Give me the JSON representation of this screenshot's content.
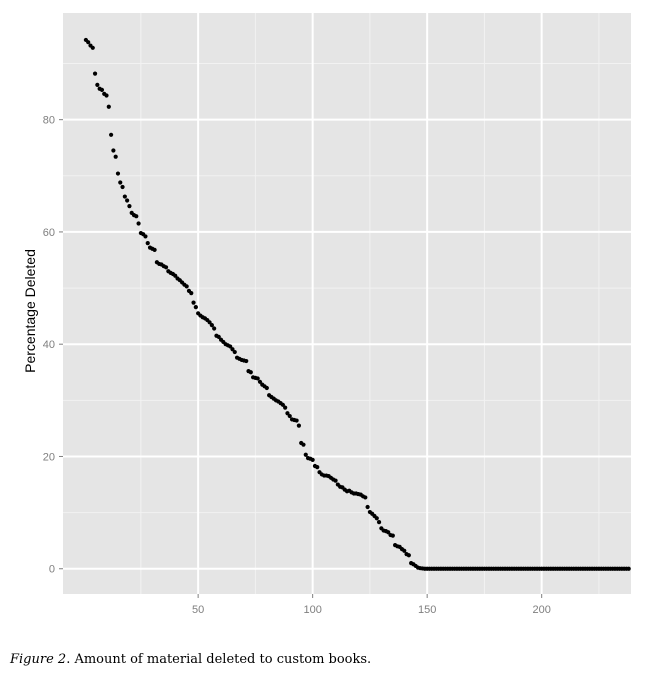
{
  "chart_data": {
    "type": "scatter",
    "title": "",
    "xlabel": "",
    "ylabel": "Percentage Deleted",
    "xlim": [
      -9,
      239
    ],
    "ylim": [
      -4.5,
      99
    ],
    "xticks": [
      50,
      100,
      150,
      200
    ],
    "yticks": [
      0,
      20,
      40,
      60,
      80
    ],
    "grid": true,
    "legend": "none",
    "colors": {
      "panel": "#e5e5e5",
      "grid_major": "#ffffff",
      "grid_minor": "#f2f2f2",
      "point": "#000000",
      "tick_label": "#7f7f7f"
    },
    "points": [
      [
        1,
        94.2
      ],
      [
        2,
        93.8
      ],
      [
        3,
        93.2
      ],
      [
        4,
        92.8
      ],
      [
        5,
        88.2
      ],
      [
        6,
        86.2
      ],
      [
        7,
        85.5
      ],
      [
        8,
        85.3
      ],
      [
        9,
        84.6
      ],
      [
        10,
        84.3
      ],
      [
        11,
        82.3
      ],
      [
        12,
        77.3
      ],
      [
        13,
        74.5
      ],
      [
        14,
        73.4
      ],
      [
        15,
        70.4
      ],
      [
        16,
        68.8
      ],
      [
        17,
        68.0
      ],
      [
        18,
        66.3
      ],
      [
        19,
        65.6
      ],
      [
        20,
        64.6
      ],
      [
        21,
        63.4
      ],
      [
        22,
        63.0
      ],
      [
        23,
        62.8
      ],
      [
        24,
        61.5
      ],
      [
        25,
        59.8
      ],
      [
        26,
        59.6
      ],
      [
        27,
        59.2
      ],
      [
        28,
        58.0
      ],
      [
        29,
        57.2
      ],
      [
        30,
        57.0
      ],
      [
        31,
        56.8
      ],
      [
        32,
        54.6
      ],
      [
        33,
        54.3
      ],
      [
        34,
        54.2
      ],
      [
        35,
        53.9
      ],
      [
        36,
        53.7
      ],
      [
        37,
        53.0
      ],
      [
        38,
        52.7
      ],
      [
        39,
        52.5
      ],
      [
        40,
        52.2
      ],
      [
        41,
        51.7
      ],
      [
        42,
        51.4
      ],
      [
        43,
        51.0
      ],
      [
        44,
        50.6
      ],
      [
        45,
        50.3
      ],
      [
        46,
        49.5
      ],
      [
        47,
        49.1
      ],
      [
        48,
        47.4
      ],
      [
        49,
        46.6
      ],
      [
        50,
        45.5
      ],
      [
        51,
        45.1
      ],
      [
        52,
        44.8
      ],
      [
        53,
        44.6
      ],
      [
        54,
        44.3
      ],
      [
        55,
        43.9
      ],
      [
        56,
        43.4
      ],
      [
        57,
        42.8
      ],
      [
        58,
        41.5
      ],
      [
        59,
        41.3
      ],
      [
        60,
        40.8
      ],
      [
        61,
        40.4
      ],
      [
        62,
        40.0
      ],
      [
        63,
        39.8
      ],
      [
        64,
        39.6
      ],
      [
        65,
        39.1
      ],
      [
        66,
        38.6
      ],
      [
        67,
        37.6
      ],
      [
        68,
        37.4
      ],
      [
        69,
        37.2
      ],
      [
        70,
        37.1
      ],
      [
        71,
        37.0
      ],
      [
        72,
        35.2
      ],
      [
        73,
        35.0
      ],
      [
        74,
        34.1
      ],
      [
        75,
        34.0
      ],
      [
        76,
        33.9
      ],
      [
        77,
        33.3
      ],
      [
        78,
        32.8
      ],
      [
        79,
        32.5
      ],
      [
        80,
        32.2
      ],
      [
        81,
        30.9
      ],
      [
        82,
        30.6
      ],
      [
        83,
        30.3
      ],
      [
        84,
        30.0
      ],
      [
        85,
        29.8
      ],
      [
        86,
        29.5
      ],
      [
        87,
        29.2
      ],
      [
        88,
        28.7
      ],
      [
        89,
        27.7
      ],
      [
        90,
        27.2
      ],
      [
        91,
        26.6
      ],
      [
        92,
        26.5
      ],
      [
        93,
        26.4
      ],
      [
        94,
        25.5
      ],
      [
        95,
        22.4
      ],
      [
        96,
        22.1
      ],
      [
        97,
        20.3
      ],
      [
        98,
        19.7
      ],
      [
        99,
        19.6
      ],
      [
        100,
        19.4
      ],
      [
        101,
        18.3
      ],
      [
        102,
        18.1
      ],
      [
        103,
        17.2
      ],
      [
        104,
        16.8
      ],
      [
        105,
        16.6
      ],
      [
        106,
        16.6
      ],
      [
        107,
        16.5
      ],
      [
        108,
        16.2
      ],
      [
        109,
        15.9
      ],
      [
        110,
        15.7
      ],
      [
        111,
        15.0
      ],
      [
        112,
        14.6
      ],
      [
        113,
        14.5
      ],
      [
        114,
        14.1
      ],
      [
        115,
        13.8
      ],
      [
        116,
        13.9
      ],
      [
        117,
        13.6
      ],
      [
        118,
        13.4
      ],
      [
        119,
        13.4
      ],
      [
        120,
        13.3
      ],
      [
        121,
        13.2
      ],
      [
        122,
        12.9
      ],
      [
        123,
        12.7
      ],
      [
        124,
        11.0
      ],
      [
        125,
        10.1
      ],
      [
        126,
        9.8
      ],
      [
        127,
        9.4
      ],
      [
        128,
        9.0
      ],
      [
        129,
        8.3
      ],
      [
        130,
        7.2
      ],
      [
        131,
        6.8
      ],
      [
        132,
        6.7
      ],
      [
        133,
        6.5
      ],
      [
        134,
        6.0
      ],
      [
        135,
        5.9
      ],
      [
        136,
        4.2
      ],
      [
        137,
        4.0
      ],
      [
        138,
        3.9
      ],
      [
        139,
        3.5
      ],
      [
        140,
        3.2
      ],
      [
        141,
        2.6
      ],
      [
        142,
        2.4
      ],
      [
        143,
        1.0
      ],
      [
        144,
        0.8
      ],
      [
        145,
        0.5
      ],
      [
        146,
        0.2
      ],
      [
        147,
        0.1
      ],
      [
        148,
        0.05
      ]
    ],
    "zero_run": {
      "x_start": 149,
      "x_end": 238,
      "y": 0
    }
  },
  "caption": {
    "label": "Figure 2",
    "text": ". Amount of material deleted to custom books."
  }
}
